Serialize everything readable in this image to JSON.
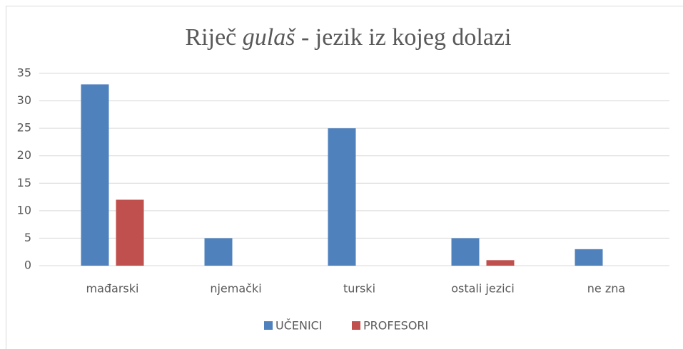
{
  "chart_data": {
    "type": "bar",
    "title": [
      {
        "text": "Riječ ",
        "italic": false
      },
      {
        "text": "gulaš",
        "italic": true
      },
      {
        "text": " - jezik iz kojeg dolazi",
        "italic": false
      }
    ],
    "categories": [
      "mađarski",
      "njemački",
      "turski",
      "ostali jezici",
      "ne zna"
    ],
    "series": [
      {
        "name": "UČENICI",
        "color": "#4f81bd",
        "values": [
          33,
          5,
          25,
          5,
          3
        ]
      },
      {
        "name": "PROFESORI",
        "color": "#c0504d",
        "values": [
          12,
          null,
          null,
          1,
          null
        ]
      }
    ],
    "ylim": [
      0,
      35
    ],
    "yticks": [
      0,
      5,
      10,
      15,
      20,
      25,
      30,
      35
    ],
    "grid": true,
    "legend": "bottom"
  }
}
